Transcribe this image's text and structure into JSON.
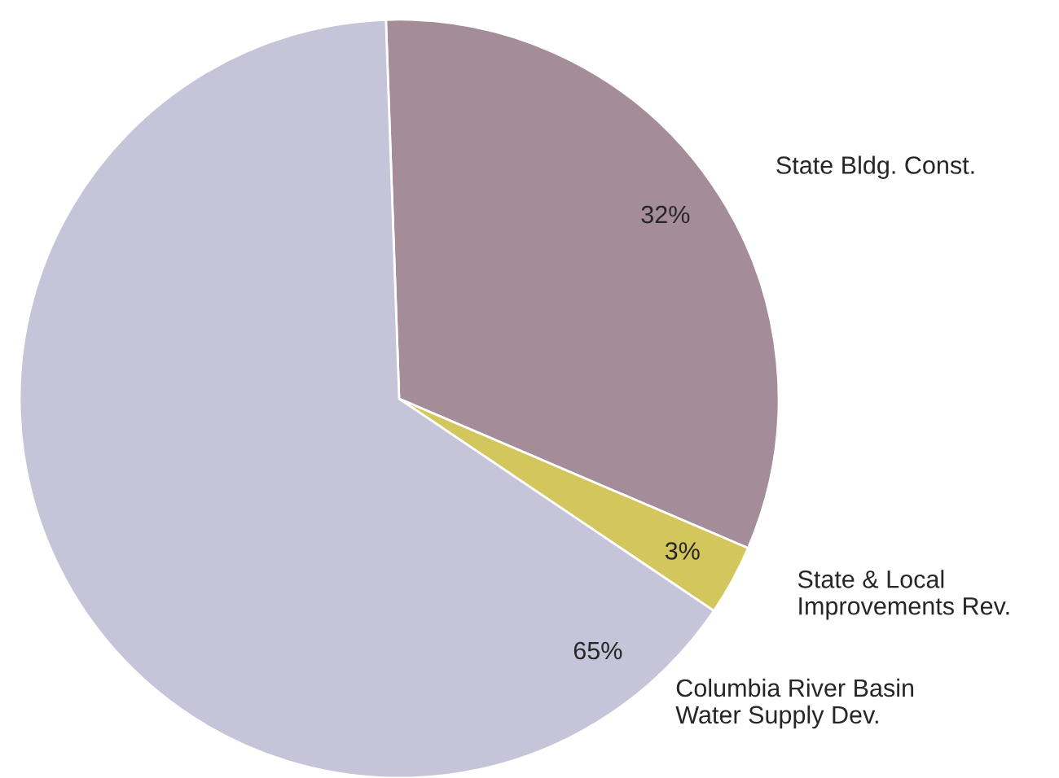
{
  "chart_data": {
    "type": "pie",
    "categories": [
      "State Bldg. Const.",
      "State & Local\nImprovements Rev.",
      "Columbia River Basin\nWater Supply Dev."
    ],
    "values": [
      32,
      3,
      65
    ],
    "colors": [
      "#a48c98",
      "#d2c65c",
      "#c6c4d8"
    ],
    "value_labels": [
      "32%",
      "3%",
      "65%"
    ]
  }
}
